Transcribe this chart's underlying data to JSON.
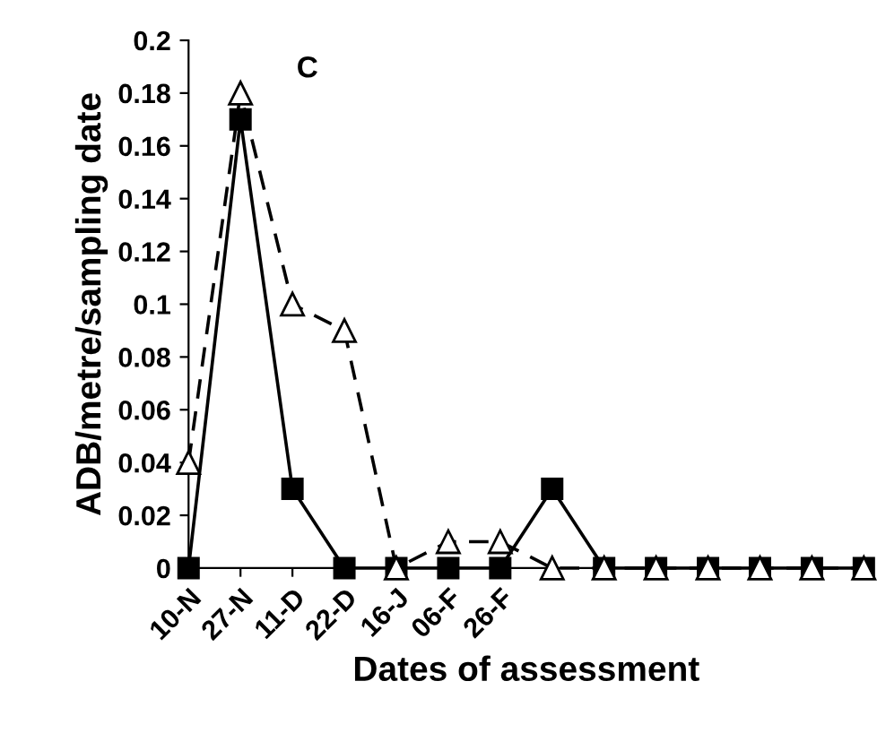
{
  "chart_data": {
    "type": "line",
    "xlabel": "Dates of assessment",
    "ylabel": "ADB/metre/sampling date",
    "categories": [
      "10-N",
      "27-N",
      "11-D",
      "22-D",
      "16-J",
      "06-F",
      "26-F",
      null,
      null,
      null,
      null,
      null,
      null,
      null
    ],
    "series": [
      {
        "color": "#000000",
        "marker": "square",
        "line_style": "solid",
        "values": [
          0,
          0.17,
          0.03,
          0,
          0,
          0,
          0,
          0.03,
          0,
          0,
          0,
          0,
          0,
          0
        ]
      },
      {
        "color": "#000000",
        "marker": "triangle",
        "line_style": "dashed",
        "values": [
          0.04,
          0.18,
          0.1,
          0.09,
          0,
          0.01,
          0.01,
          0,
          0,
          0,
          0,
          0,
          0,
          0
        ]
      }
    ],
    "ylim": [
      0,
      0.2
    ],
    "yticks": [
      0,
      0.02,
      0.04,
      0.06,
      0.08,
      0.1,
      0.12,
      0.14,
      0.16,
      0.18,
      0.2
    ],
    "annotations": [
      "C"
    ],
    "grid": false,
    "legend": false
  }
}
